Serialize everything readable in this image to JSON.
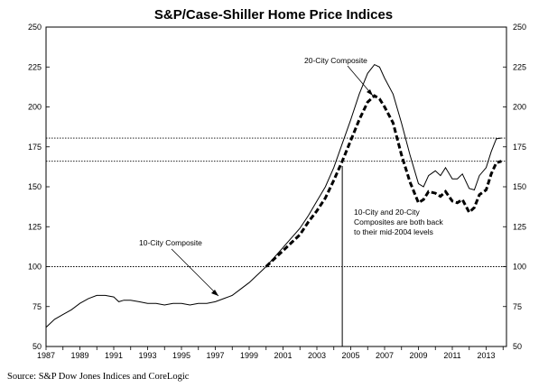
{
  "chart_data": {
    "type": "line",
    "title": "S&P/Case-Shiller Home Price Indices",
    "source": "Source: S&P Dow Jones Indices and CoreLogic",
    "xlim": [
      1987,
      2014.2
    ],
    "ylim": [
      50,
      250
    ],
    "y_ticks": [
      "50",
      "75",
      "100",
      "125",
      "150",
      "175",
      "200",
      "225",
      "250"
    ],
    "x_ticks": [
      "1987",
      "1989",
      "1991",
      "1993",
      "1995",
      "1997",
      "1999",
      "2001",
      "2003",
      "2005",
      "2007",
      "2009",
      "2011",
      "2013"
    ],
    "reference_lines": [
      100,
      166,
      180.5
    ],
    "event_line_x": 2004.5,
    "grid": false,
    "annotations": {
      "ten_city": "10-City Composite",
      "twenty_city": "20-City Composite",
      "note": [
        "10-City and 20-City",
        "Composites are both back",
        "to their mid-2004 levels"
      ]
    },
    "series": [
      {
        "name": "10-City Composite",
        "style": "solid",
        "points": [
          [
            1987.0,
            62
          ],
          [
            1987.5,
            67
          ],
          [
            1988.0,
            70
          ],
          [
            1988.5,
            73
          ],
          [
            1989.0,
            77
          ],
          [
            1989.5,
            80
          ],
          [
            1990.0,
            82
          ],
          [
            1990.5,
            82
          ],
          [
            1991.0,
            81
          ],
          [
            1991.3,
            78
          ],
          [
            1991.6,
            79
          ],
          [
            1992.0,
            79
          ],
          [
            1992.5,
            78
          ],
          [
            1993.0,
            77
          ],
          [
            1993.5,
            77
          ],
          [
            1994.0,
            76
          ],
          [
            1994.5,
            77
          ],
          [
            1995.0,
            77
          ],
          [
            1995.5,
            76
          ],
          [
            1996.0,
            77
          ],
          [
            1996.5,
            77
          ],
          [
            1997.0,
            78
          ],
          [
            1997.5,
            80
          ],
          [
            1998.0,
            82
          ],
          [
            1998.5,
            86
          ],
          [
            1999.0,
            90
          ],
          [
            1999.5,
            95
          ],
          [
            2000.0,
            100
          ],
          [
            2000.5,
            106
          ],
          [
            2001.0,
            112
          ],
          [
            2001.5,
            118
          ],
          [
            2002.0,
            124
          ],
          [
            2002.5,
            132
          ],
          [
            2003.0,
            141
          ],
          [
            2003.5,
            150
          ],
          [
            2004.0,
            162
          ],
          [
            2004.5,
            177
          ],
          [
            2005.0,
            192
          ],
          [
            2005.5,
            208
          ],
          [
            2006.0,
            221
          ],
          [
            2006.4,
            226.5
          ],
          [
            2006.7,
            225
          ],
          [
            2007.0,
            218
          ],
          [
            2007.5,
            208
          ],
          [
            2008.0,
            190
          ],
          [
            2008.5,
            170
          ],
          [
            2009.0,
            152
          ],
          [
            2009.3,
            150
          ],
          [
            2009.6,
            157
          ],
          [
            2010.0,
            160
          ],
          [
            2010.3,
            157
          ],
          [
            2010.6,
            162
          ],
          [
            2011.0,
            155
          ],
          [
            2011.3,
            155
          ],
          [
            2011.6,
            158
          ],
          [
            2012.0,
            149
          ],
          [
            2012.3,
            148
          ],
          [
            2012.6,
            157
          ],
          [
            2013.0,
            162
          ],
          [
            2013.3,
            172
          ],
          [
            2013.6,
            180
          ],
          [
            2013.9,
            180.5
          ]
        ]
      },
      {
        "name": "20-City Composite",
        "style": "dashed",
        "points": [
          [
            2000.0,
            100
          ],
          [
            2000.5,
            105
          ],
          [
            2001.0,
            110
          ],
          [
            2001.5,
            115
          ],
          [
            2002.0,
            120
          ],
          [
            2002.5,
            128
          ],
          [
            2003.0,
            135
          ],
          [
            2003.5,
            143
          ],
          [
            2004.0,
            154
          ],
          [
            2004.5,
            166
          ],
          [
            2005.0,
            179
          ],
          [
            2005.5,
            192
          ],
          [
            2006.0,
            203
          ],
          [
            2006.4,
            207
          ],
          [
            2006.7,
            205
          ],
          [
            2007.0,
            200
          ],
          [
            2007.5,
            190
          ],
          [
            2008.0,
            170
          ],
          [
            2008.5,
            153
          ],
          [
            2009.0,
            140
          ],
          [
            2009.3,
            142
          ],
          [
            2009.6,
            147
          ],
          [
            2010.0,
            146
          ],
          [
            2010.3,
            144
          ],
          [
            2010.6,
            147
          ],
          [
            2011.0,
            141
          ],
          [
            2011.3,
            140
          ],
          [
            2011.6,
            142
          ],
          [
            2012.0,
            134
          ],
          [
            2012.3,
            137
          ],
          [
            2012.6,
            145
          ],
          [
            2013.0,
            148
          ],
          [
            2013.3,
            158
          ],
          [
            2013.6,
            165
          ],
          [
            2013.9,
            166
          ]
        ]
      }
    ]
  }
}
